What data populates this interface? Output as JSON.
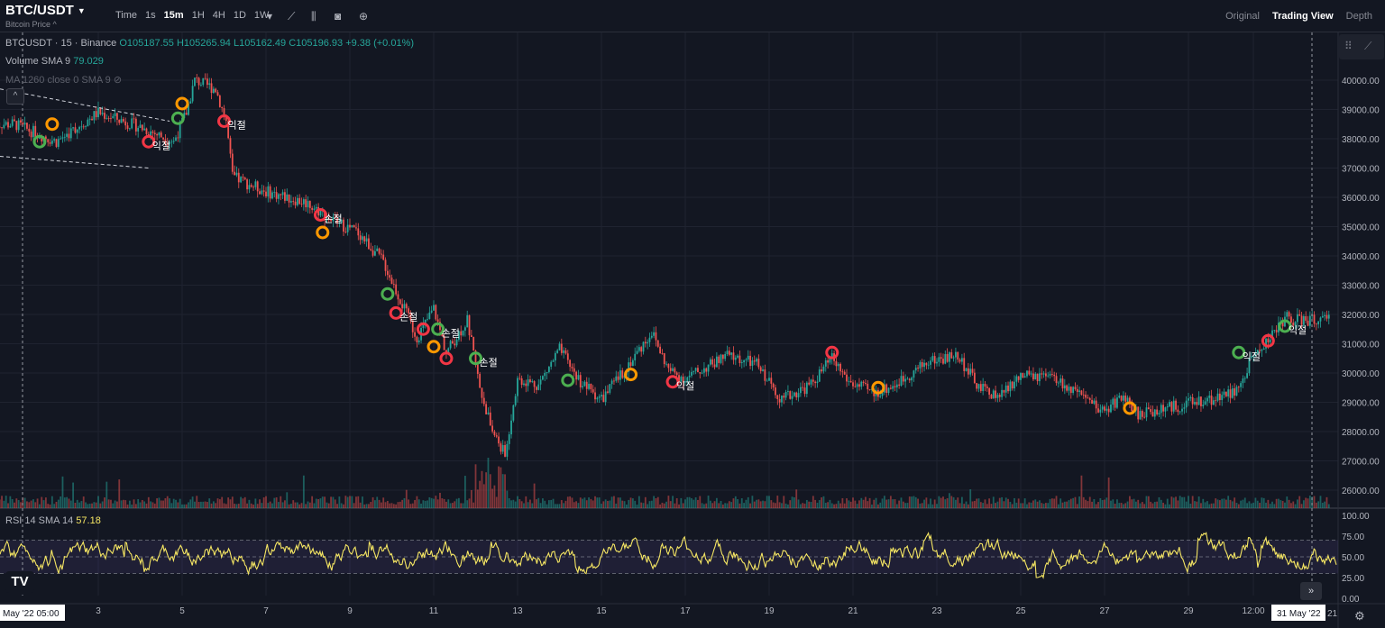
{
  "header": {
    "symbol": "BTC/USDT",
    "subtitle": "Bitcoin Price ^",
    "intervals": [
      "Time",
      "1s",
      "15m",
      "1H",
      "4H",
      "1D",
      "1W"
    ],
    "active_interval": "15m",
    "views": [
      "Original",
      "Trading View",
      "Depth"
    ],
    "active_view": "Trading View"
  },
  "legend": {
    "title": "BTCUSDT · 15 · Binance",
    "open": "O105187.55",
    "high": "H105265.94",
    "low": "L105162.49",
    "close": "C105196.93",
    "change": "+9.38 (+0.01%)",
    "volume_label": "Volume SMA 9",
    "volume_value": "79.029",
    "ma_label": "MA 1260 close 0 SMA 9",
    "rsi_label": "RSI 14 SMA 14",
    "rsi_value": "57.18"
  },
  "colors": {
    "up": "#26a69a",
    "down": "#ef5350",
    "rsi": "#f5e663",
    "background": "#131722",
    "grid": "#1f2330"
  },
  "price_axis": [
    "40000.00",
    "39000.00",
    "38000.00",
    "37000.00",
    "36000.00",
    "35000.00",
    "34000.00",
    "33000.00",
    "32000.00",
    "31000.00",
    "30000.00",
    "29000.00",
    "28000.00",
    "27000.00",
    "26000.00"
  ],
  "rsi_axis": [
    "100.00",
    "75.00",
    "50.00",
    "25.00",
    "0.00"
  ],
  "time_axis": [
    "3",
    "5",
    "7",
    "9",
    "11",
    "13",
    "15",
    "17",
    "19",
    "21",
    "23",
    "25",
    "27",
    "29",
    "12:00"
  ],
  "crosshair_labels": {
    "left_time": "May '22  05:00",
    "right_time": "31 May '22",
    "right_fragment": "21"
  },
  "chart_data": {
    "type": "candlestick",
    "ylim": [
      25500,
      40800
    ],
    "rsi_ylim": [
      0,
      100
    ],
    "path_days": [
      1,
      2,
      3,
      4,
      4.8,
      5.1,
      5.3,
      5.8,
      6.05,
      6.2,
      7,
      8,
      8.6,
      9.2,
      9.8,
      10.2,
      10.6,
      11,
      11.3,
      11.8,
      12.1,
      12.4,
      12.7,
      13,
      13.5,
      14,
      14.5,
      15,
      15.5,
      16.2,
      16.6,
      17,
      18,
      18.7,
      19.3,
      20,
      20.5,
      20.9,
      21.5,
      22,
      22.8,
      23.5,
      24,
      24.5,
      25,
      25.8,
      26.5,
      27,
      27.4,
      27.8,
      28.5,
      29.5,
      30.2,
      30.5,
      30.8,
      31,
      31.3,
      31.5
    ],
    "path_prices": [
      38500,
      37900,
      38900,
      38400,
      37900,
      38900,
      40000,
      39700,
      38600,
      36700,
      36200,
      35800,
      35200,
      34800,
      33800,
      32500,
      31200,
      32200,
      30700,
      31800,
      29500,
      28000,
      27200,
      29800,
      29600,
      30800,
      29700,
      29100,
      30000,
      31400,
      30100,
      29800,
      30600,
      30300,
      29100,
      29600,
      30500,
      29700,
      29300,
      29600,
      30400,
      30600,
      29500,
      29200,
      29900,
      29800,
      29100,
      28700,
      29200,
      28600,
      28800,
      29100,
      29400,
      30500,
      31000,
      31300,
      31900,
      31800
    ],
    "rsi_overbought": 70,
    "rsi_oversold": 30,
    "markers": [
      {
        "day": 1.6,
        "price": 37900,
        "type": "buy",
        "label": ""
      },
      {
        "day": 1.9,
        "price": 38500,
        "type": "warn",
        "label": ""
      },
      {
        "day": 4.2,
        "price": 37900,
        "type": "sell",
        "label": "익절"
      },
      {
        "day": 4.9,
        "price": 38700,
        "type": "buy",
        "label": ""
      },
      {
        "day": 5.0,
        "price": 39200,
        "type": "warn",
        "label": ""
      },
      {
        "day": 6.0,
        "price": 38600,
        "type": "sell",
        "label": "익절"
      },
      {
        "day": 8.3,
        "price": 35400,
        "type": "sell",
        "label": "손절"
      },
      {
        "day": 8.35,
        "price": 34800,
        "type": "warn",
        "label": ""
      },
      {
        "day": 9.9,
        "price": 32700,
        "type": "buy",
        "label": ""
      },
      {
        "day": 10.1,
        "price": 32050,
        "type": "sell",
        "label": "손절"
      },
      {
        "day": 10.75,
        "price": 31500,
        "type": "sell",
        "label": ""
      },
      {
        "day": 11.1,
        "price": 31500,
        "type": "buy",
        "label": "손절"
      },
      {
        "day": 11.0,
        "price": 30900,
        "type": "warn",
        "label": ""
      },
      {
        "day": 11.3,
        "price": 30500,
        "type": "sell",
        "label": ""
      },
      {
        "day": 12.0,
        "price": 30500,
        "type": "buy",
        "label": "손절"
      },
      {
        "day": 14.2,
        "price": 29750,
        "type": "buy",
        "label": ""
      },
      {
        "day": 15.7,
        "price": 29950,
        "type": "warn",
        "label": ""
      },
      {
        "day": 16.7,
        "price": 29700,
        "type": "sell",
        "label": "익절"
      },
      {
        "day": 20.5,
        "price": 30700,
        "type": "sell",
        "label": ""
      },
      {
        "day": 21.6,
        "price": 29500,
        "type": "warn",
        "label": ""
      },
      {
        "day": 27.6,
        "price": 28800,
        "type": "warn",
        "label": ""
      },
      {
        "day": 30.2,
        "price": 30700,
        "type": "buy",
        "label": "익절"
      },
      {
        "day": 30.9,
        "price": 31100,
        "type": "sell",
        "label": ""
      },
      {
        "day": 31.3,
        "price": 31600,
        "type": "buy",
        "label": "익절"
      }
    ]
  }
}
